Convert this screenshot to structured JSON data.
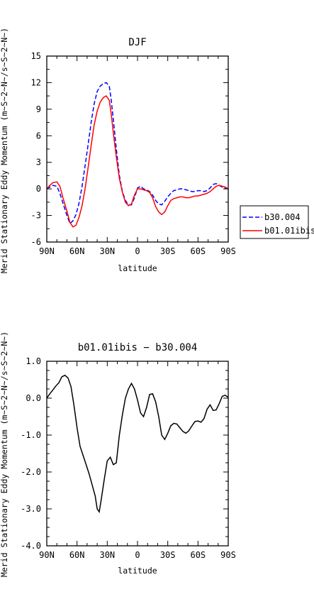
{
  "chart_data": [
    {
      "type": "line",
      "title": "DJF",
      "xlabel": "latitude",
      "ylabel": "Merid Stationary Eddy Momentum (m~S~2~N~/s~S~2~N~)",
      "x_tick_labels": [
        "90N",
        "60N",
        "30N",
        "0",
        "30S",
        "60S",
        "90S"
      ],
      "y_tick_labels": [
        "-6",
        "-3",
        "0",
        "3",
        "6",
        "9",
        "12",
        "15"
      ],
      "xlim": [
        90,
        -90
      ],
      "ylim": [
        -6,
        15
      ],
      "grid": false,
      "legend_position": "right",
      "x": [
        90,
        87,
        84,
        80,
        77,
        74,
        70,
        67,
        64,
        61,
        58,
        55,
        52,
        49,
        46,
        43,
        40,
        37,
        34,
        31,
        28,
        26,
        24,
        21,
        18,
        15,
        12,
        9,
        6,
        3,
        0,
        -3,
        -6,
        -9,
        -12,
        -15,
        -18,
        -21,
        -24,
        -27,
        -30,
        -33,
        -36,
        -39,
        -42,
        -45,
        -48,
        -51,
        -54,
        -57,
        -60,
        -63,
        -66,
        -69,
        -72,
        -75,
        -78,
        -81,
        -84,
        -87,
        -90
      ],
      "series": [
        {
          "name": "b30.004",
          "color": "#0000ff",
          "style": "dashed",
          "values": [
            0,
            0.2,
            0.4,
            0.3,
            -0.5,
            -1.6,
            -3.0,
            -3.9,
            -3.6,
            -2.9,
            -1.6,
            0.3,
            2.6,
            5.0,
            7.5,
            9.6,
            11.0,
            11.6,
            11.9,
            12.0,
            11.6,
            10.0,
            7.8,
            4.5,
            1.5,
            -0.3,
            -1.3,
            -1.8,
            -1.8,
            -1.0,
            0.1,
            0.3,
            0.0,
            -0.1,
            -0.3,
            -0.7,
            -1.3,
            -1.7,
            -1.8,
            -1.4,
            -0.9,
            -0.5,
            -0.2,
            -0.1,
            0.0,
            0.0,
            -0.1,
            -0.2,
            -0.3,
            -0.3,
            -0.2,
            -0.2,
            -0.3,
            -0.2,
            0.1,
            0.5,
            0.6,
            0.4,
            0.2,
            0.1,
            0.0
          ]
        },
        {
          "name": "b01.01ibis",
          "color": "#ff0000",
          "style": "solid",
          "values": [
            0,
            0.4,
            0.7,
            0.8,
            0.3,
            -1.0,
            -2.5,
            -3.8,
            -4.3,
            -4.1,
            -3.2,
            -1.9,
            0.0,
            2.4,
            4.9,
            7.2,
            8.8,
            9.8,
            10.3,
            10.5,
            10.0,
            8.4,
            6.3,
            3.6,
            1.2,
            -0.4,
            -1.5,
            -1.9,
            -1.7,
            -0.7,
            0.0,
            0.0,
            -0.1,
            -0.2,
            -0.4,
            -1.0,
            -2.0,
            -2.6,
            -2.9,
            -2.6,
            -1.9,
            -1.3,
            -1.1,
            -1.0,
            -0.9,
            -0.9,
            -1.0,
            -1.0,
            -0.9,
            -0.8,
            -0.8,
            -0.7,
            -0.6,
            -0.5,
            -0.3,
            0.0,
            0.3,
            0.4,
            0.3,
            0.2,
            0.0
          ]
        }
      ]
    },
    {
      "type": "line",
      "title": "b01.01ibis − b30.004",
      "xlabel": "latitude",
      "ylabel": "Merid Stationary Eddy Momentum (m~S~2~N~/s~S~2~N~)",
      "x_tick_labels": [
        "90N",
        "60N",
        "30N",
        "0",
        "30S",
        "60S",
        "90S"
      ],
      "y_tick_labels": [
        "1.0",
        "0.0",
        "-1.0",
        "-2.0",
        "-3.0",
        "-4.0"
      ],
      "xlim": [
        90,
        -90
      ],
      "ylim": [
        -4,
        1
      ],
      "grid": false,
      "x": [
        90,
        87,
        84,
        81,
        78,
        75,
        72,
        69,
        66,
        63,
        60,
        57,
        54,
        51,
        48,
        45,
        42,
        40,
        38,
        36,
        33,
        30,
        27,
        24,
        21,
        18,
        15,
        12,
        9,
        6,
        3,
        0,
        -3,
        -6,
        -9,
        -12,
        -15,
        -18,
        -21,
        -24,
        -27,
        -30,
        -33,
        -36,
        -39,
        -42,
        -45,
        -48,
        -51,
        -54,
        -57,
        -60,
        -63,
        -66,
        -69,
        -72,
        -75,
        -78,
        -81,
        -84,
        -87,
        -90
      ],
      "series": [
        {
          "name": "",
          "color": "#000000",
          "style": "solid",
          "values": [
            0.0,
            0.12,
            0.22,
            0.33,
            0.42,
            0.58,
            0.62,
            0.55,
            0.32,
            -0.2,
            -0.8,
            -1.3,
            -1.55,
            -1.8,
            -2.05,
            -2.35,
            -2.65,
            -3.0,
            -3.08,
            -2.75,
            -2.2,
            -1.7,
            -1.6,
            -1.8,
            -1.75,
            -1.0,
            -0.45,
            0.0,
            0.25,
            0.4,
            0.25,
            -0.05,
            -0.4,
            -0.5,
            -0.25,
            0.1,
            0.12,
            -0.1,
            -0.5,
            -1.0,
            -1.12,
            -0.95,
            -0.75,
            -0.68,
            -0.7,
            -0.8,
            -0.9,
            -0.95,
            -0.88,
            -0.75,
            -0.63,
            -0.62,
            -0.65,
            -0.55,
            -0.3,
            -0.18,
            -0.33,
            -0.32,
            -0.15,
            0.05,
            0.08,
            0.02
          ]
        }
      ]
    }
  ]
}
